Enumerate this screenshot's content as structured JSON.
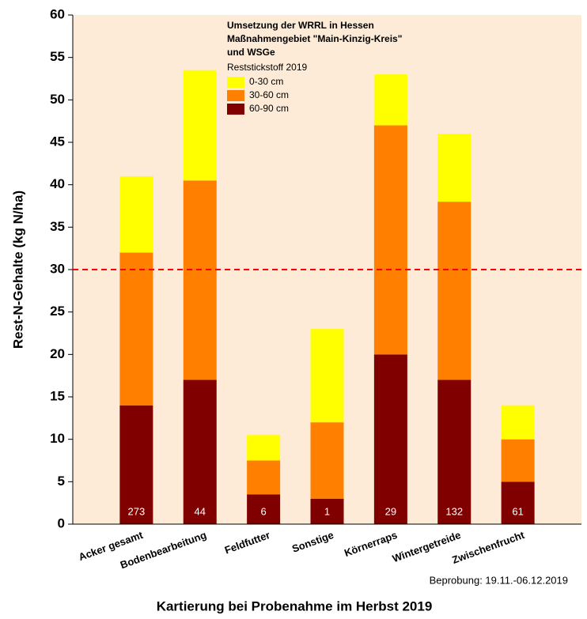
{
  "chart_data": {
    "type": "stacked_bar",
    "title_lines": [
      "Umsetzung der WRRL in Hessen",
      "Maßnahmengebiet \"Main-Kinzig-Kreis\"",
      "und WSGe"
    ],
    "legend_title": "Reststickstoff 2019",
    "y_label": "Rest-N-Gehalte (kg N/ha)",
    "x_label": "Kartierung bei Probenahme im Herbst 2019",
    "footnote": "Beprobung: 19.11.-06.12.2019",
    "categories": [
      "Acker gesamt",
      "Bodenbearbeitung",
      "Feldfutter",
      "Sonstige",
      "Körnerraps",
      "Wintergetreide",
      "Zwischenfrucht"
    ],
    "sample_counts": [
      273,
      44,
      6,
      1,
      29,
      132,
      61
    ],
    "series": [
      {
        "name": "0-30 cm",
        "color": "#ffff00",
        "values": [
          9,
          13,
          3,
          11,
          6,
          8,
          4
        ]
      },
      {
        "name": "30-60 cm",
        "color": "#ff7f00",
        "values": [
          18,
          23.5,
          4,
          9,
          27,
          21,
          5
        ]
      },
      {
        "name": "60-90 cm",
        "color": "#800000",
        "values": [
          14,
          17,
          3.5,
          3,
          20,
          17,
          5
        ]
      }
    ],
    "reference_line": {
      "value": 30,
      "color": "#ff0000"
    },
    "ylim": [
      0,
      60
    ],
    "yticks": [
      0,
      5,
      10,
      15,
      20,
      25,
      30,
      35,
      40,
      45,
      50,
      55,
      60
    ],
    "background": "#fdebd7"
  }
}
